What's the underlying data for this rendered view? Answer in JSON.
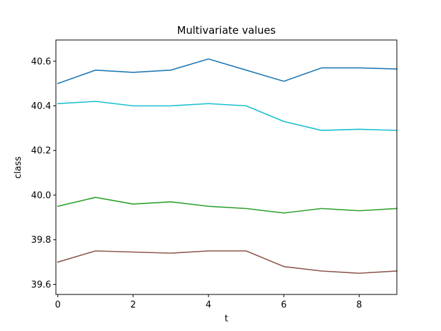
{
  "chart_data": {
    "type": "line",
    "title": "Multivariate values",
    "xlabel": "t",
    "ylabel": "class",
    "xlim": [
      -0.05,
      9
    ],
    "ylim": [
      39.555,
      40.695
    ],
    "xticks": [
      0,
      2,
      4,
      6,
      8
    ],
    "yticks": [
      39.6,
      39.8,
      40.0,
      40.2,
      40.4,
      40.6
    ],
    "ytick_labels": [
      "39.6",
      "39.8",
      "40.0",
      "40.2",
      "40.4",
      "40.6"
    ],
    "grid": false,
    "x": [
      0,
      1,
      2,
      3,
      4,
      5,
      6,
      7,
      8,
      9
    ],
    "series": [
      {
        "color": "#1f77b4",
        "values": [
          40.5,
          40.56,
          40.55,
          40.56,
          40.61,
          40.56,
          40.51,
          40.57,
          40.57,
          40.565
        ]
      },
      {
        "color": "#17becf",
        "values": [
          40.41,
          40.42,
          40.4,
          40.4,
          40.41,
          40.4,
          40.33,
          40.29,
          40.295,
          40.29
        ]
      },
      {
        "color": "#2ca02c",
        "values": [
          39.95,
          39.99,
          39.96,
          39.97,
          39.95,
          39.94,
          39.92,
          39.94,
          39.93,
          39.94
        ]
      },
      {
        "color": "#8c564b",
        "values": [
          39.7,
          39.75,
          39.745,
          39.74,
          39.75,
          39.75,
          39.68,
          39.66,
          39.65,
          39.66
        ]
      }
    ]
  }
}
